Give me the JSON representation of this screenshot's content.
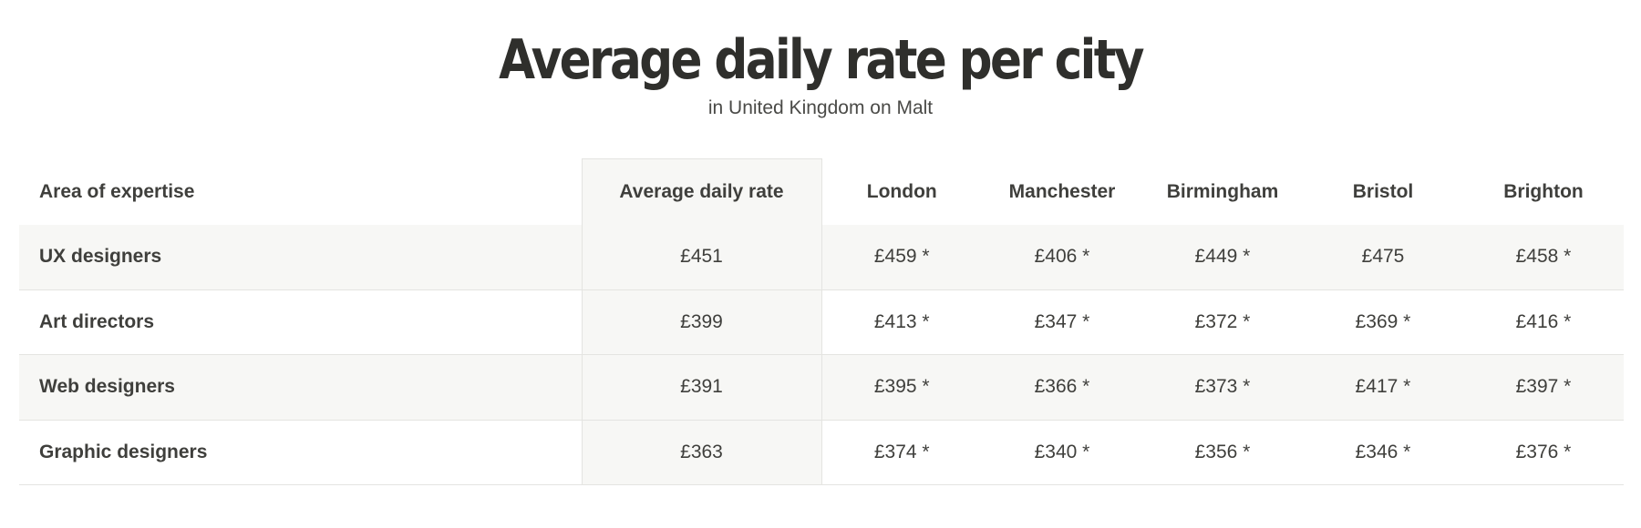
{
  "header": {
    "title": "Average daily rate per city",
    "subtitle": "in United Kingdom on Malt"
  },
  "table": {
    "columns": [
      "Area of expertise",
      "Average daily rate",
      "London",
      "Manchester",
      "Birmingham",
      "Bristol",
      "Brighton"
    ],
    "rows": [
      [
        "UX designers",
        "£451",
        "£459 *",
        "£406 *",
        "£449 *",
        "£475",
        "£458 *"
      ],
      [
        "Art directors",
        "£399",
        "£413 *",
        "£347 *",
        "£372 *",
        "£369 *",
        "£416 *"
      ],
      [
        "Web designers",
        "£391",
        "£395 *",
        "£366 *",
        "£373 *",
        "£417 *",
        "£397 *"
      ],
      [
        "Graphic designers",
        "£363",
        "£374 *",
        "£340 *",
        "£356 *",
        "£346 *",
        "£376 *"
      ]
    ]
  },
  "colors": {
    "text": "#3c3c3a",
    "title": "#2f2f2c",
    "row_shade": "#f7f7f5",
    "divider": "#e4e4e1"
  }
}
